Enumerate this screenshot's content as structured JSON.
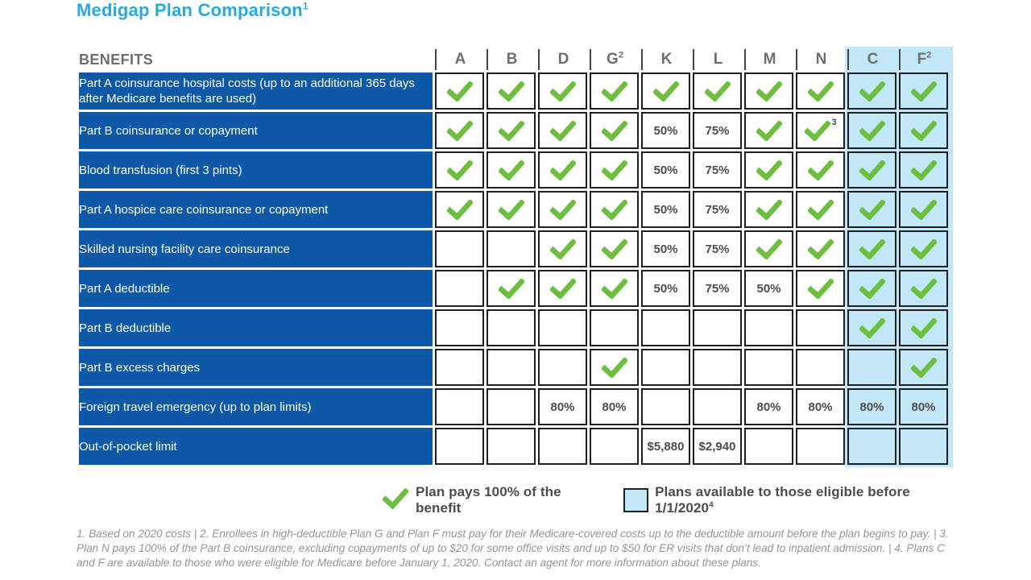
{
  "title": {
    "text": "Medigap Plan Comparison",
    "sup": "1"
  },
  "colors": {
    "title_blue": "#29A9E1",
    "benefit_row_blue": "#0E58A8",
    "highlight_light_blue": "#C2E8F7",
    "check_green": "#6CBF3F",
    "header_gray": "#6D6E71",
    "value_gray": "#4D4D4F",
    "footnote_gray": "#939598",
    "border_dark": "#1F1F21"
  },
  "table": {
    "benefits_header": "BENEFITS",
    "plans": [
      {
        "label": "A",
        "sup": "",
        "highlight": false
      },
      {
        "label": "B",
        "sup": "",
        "highlight": false
      },
      {
        "label": "D",
        "sup": "",
        "highlight": false
      },
      {
        "label": "G",
        "sup": "2",
        "highlight": false
      },
      {
        "label": "K",
        "sup": "",
        "highlight": false
      },
      {
        "label": "L",
        "sup": "",
        "highlight": false
      },
      {
        "label": "M",
        "sup": "",
        "highlight": false
      },
      {
        "label": "N",
        "sup": "",
        "highlight": false
      },
      {
        "label": "C",
        "sup": "",
        "highlight": true
      },
      {
        "label": "F",
        "sup": "2",
        "highlight": true
      }
    ],
    "rows": [
      {
        "benefit": "Part A coinsurance hospital costs (up to an additional 365 days after Medicare benefits are used)",
        "cells": [
          "check",
          "check",
          "check",
          "check",
          "check",
          "check",
          "check",
          "check",
          "check",
          "check"
        ]
      },
      {
        "benefit": "Part B coinsurance or copayment",
        "cells": [
          "check",
          "check",
          "check",
          "check",
          "50%",
          "75%",
          "check",
          "check|3",
          "check",
          "check"
        ]
      },
      {
        "benefit": "Blood transfusion (first 3 pints)",
        "cells": [
          "check",
          "check",
          "check",
          "check",
          "50%",
          "75%",
          "check",
          "check",
          "check",
          "check"
        ]
      },
      {
        "benefit": "Part A hospice care coinsurance or copayment",
        "cells": [
          "check",
          "check",
          "check",
          "check",
          "50%",
          "75%",
          "check",
          "check",
          "check",
          "check"
        ]
      },
      {
        "benefit": "Skilled nursing facility care coinsurance",
        "cells": [
          "",
          "",
          "check",
          "check",
          "50%",
          "75%",
          "check",
          "check",
          "check",
          "check"
        ]
      },
      {
        "benefit": "Part A deductible",
        "cells": [
          "",
          "check",
          "check",
          "check",
          "50%",
          "75%",
          "50%",
          "check",
          "check",
          "check"
        ]
      },
      {
        "benefit": "Part B deductible",
        "cells": [
          "",
          "",
          "",
          "",
          "",
          "",
          "",
          "",
          "check",
          "check"
        ]
      },
      {
        "benefit": "Part B excess charges",
        "cells": [
          "",
          "",
          "",
          "check",
          "",
          "",
          "",
          "",
          "",
          "check"
        ]
      },
      {
        "benefit": "Foreign travel emergency  (up to plan limits)",
        "cells": [
          "",
          "",
          "80%",
          "80%",
          "",
          "",
          "80%",
          "80%",
          "80%",
          "80%"
        ]
      },
      {
        "benefit": "Out-of-pocket limit",
        "cells": [
          "",
          "",
          "",
          "",
          "$5,880",
          "$2,940",
          "",
          "",
          "",
          ""
        ]
      }
    ]
  },
  "legend": {
    "check_label": "Plan pays 100% of the benefit",
    "highlight_label": "Plans available to those eligible before 1/1/2020",
    "highlight_sup": "4"
  },
  "footnote": "1. Based on 2020 costs | 2. Enrollees in high-deductible Plan G and Plan F must pay for their Medicare-covered costs up to the deductible amount before the plan begins to pay. | 3. Plan N pays 100% of the Part B coinsurance, excluding copayments of up to $20 for some office visits and up to $50 for ER visits that don’t lead to inpatient admission. | 4. Plans C and F are available to those who were eligible for Medicare before January 1, 2020. Contact an agent for more information about these plans."
}
